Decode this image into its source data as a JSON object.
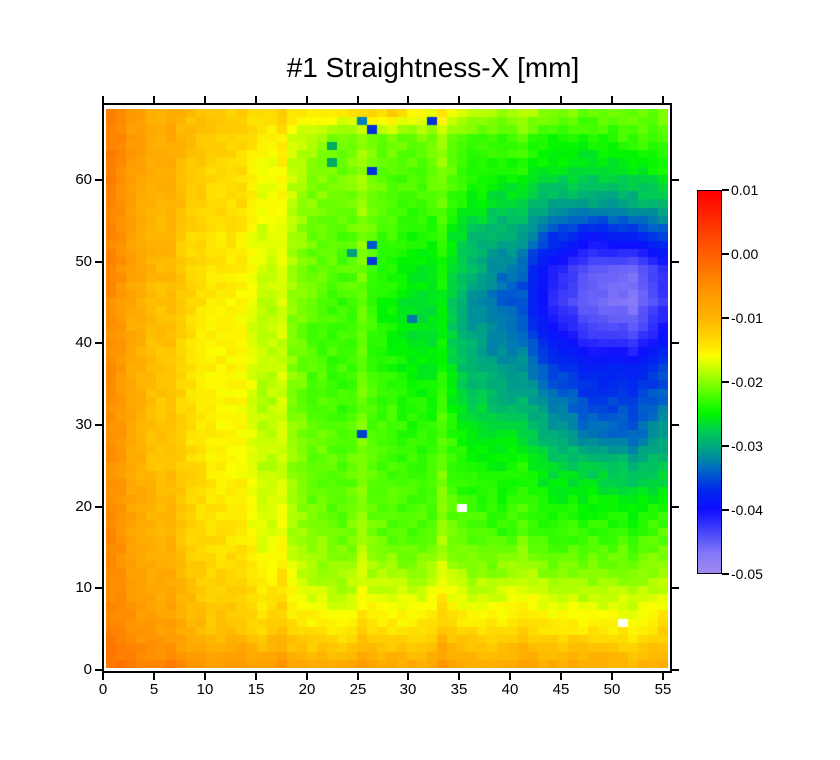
{
  "page": {
    "background": "#ffffff"
  },
  "chart_data": {
    "type": "heatmap",
    "title": "#1 Straightness-X [mm]",
    "x_axis": {
      "tick_labels": [
        "0",
        "5",
        "10",
        "15",
        "20",
        "25",
        "30",
        "35",
        "40",
        "45",
        "50",
        "55"
      ],
      "tick_values": [
        0,
        5,
        10,
        15,
        20,
        25,
        30,
        35,
        40,
        45,
        50,
        55
      ],
      "range": [
        0,
        56
      ]
    },
    "y_axis": {
      "tick_labels": [
        "0",
        "10",
        "20",
        "30",
        "40",
        "50",
        "60"
      ],
      "tick_values": [
        0,
        10,
        20,
        30,
        40,
        50,
        60
      ],
      "range": [
        0,
        68
      ]
    },
    "grid_cols": 56,
    "grid_rows": 68,
    "legend_position": "right",
    "colorbar": {
      "tick_labels": [
        "0.01",
        "0.00",
        "-0.01",
        "-0.02",
        "-0.03",
        "-0.04",
        "-0.05"
      ],
      "tick_values": [
        0.01,
        0.0,
        -0.01,
        -0.02,
        -0.03,
        -0.04,
        -0.05
      ],
      "max": 0.01,
      "min": -0.05,
      "stops": [
        {
          "v": 0.01,
          "color": "#ff0000"
        },
        {
          "v": 0.004,
          "color": "#ff3c00"
        },
        {
          "v": 0.0,
          "color": "#ff6000"
        },
        {
          "v": -0.006,
          "color": "#ff9800"
        },
        {
          "v": -0.01,
          "color": "#ffb400"
        },
        {
          "v": -0.0135,
          "color": "#ffdc00"
        },
        {
          "v": -0.016,
          "color": "#fbff00"
        },
        {
          "v": -0.019,
          "color": "#a4ff00"
        },
        {
          "v": -0.022,
          "color": "#50ff00"
        },
        {
          "v": -0.025,
          "color": "#00f600"
        },
        {
          "v": -0.028,
          "color": "#00c85a"
        },
        {
          "v": -0.031,
          "color": "#009c8c"
        },
        {
          "v": -0.034,
          "color": "#0064c8"
        },
        {
          "v": -0.037,
          "color": "#0028ee"
        },
        {
          "v": -0.04,
          "color": "#0e0eff"
        },
        {
          "v": -0.0435,
          "color": "#4444fa"
        },
        {
          "v": -0.047,
          "color": "#8478f8"
        },
        {
          "v": -0.05,
          "color": "#a28af0"
        }
      ]
    },
    "surface": {
      "xs": [
        0,
        4,
        8,
        12,
        16,
        20,
        24,
        28,
        32,
        36,
        40,
        44,
        48,
        52,
        55
      ],
      "ys": [
        67,
        64,
        60,
        56,
        52,
        48,
        44,
        40,
        36,
        32,
        28,
        24,
        20,
        16,
        12,
        8,
        4,
        0
      ],
      "values_mm": [
        [
          -0.003,
          -0.009,
          -0.011,
          -0.013,
          -0.014,
          -0.015,
          -0.015,
          -0.013,
          -0.017,
          -0.018,
          -0.019,
          -0.02,
          -0.021,
          -0.021,
          -0.021
        ],
        [
          -0.003,
          -0.009,
          -0.011,
          -0.013,
          -0.016,
          -0.019,
          -0.021,
          -0.021,
          -0.021,
          -0.022,
          -0.023,
          -0.024,
          -0.024,
          -0.023,
          -0.022
        ],
        [
          -0.003,
          -0.009,
          -0.012,
          -0.014,
          -0.017,
          -0.02,
          -0.021,
          -0.022,
          -0.022,
          -0.023,
          -0.025,
          -0.026,
          -0.027,
          -0.026,
          -0.025
        ],
        [
          -0.004,
          -0.01,
          -0.012,
          -0.014,
          -0.017,
          -0.02,
          -0.021,
          -0.022,
          -0.023,
          -0.025,
          -0.028,
          -0.03,
          -0.031,
          -0.03,
          -0.029
        ],
        [
          -0.004,
          -0.01,
          -0.013,
          -0.015,
          -0.018,
          -0.021,
          -0.022,
          -0.023,
          -0.025,
          -0.028,
          -0.031,
          -0.036,
          -0.039,
          -0.038,
          -0.036
        ],
        [
          -0.004,
          -0.01,
          -0.013,
          -0.015,
          -0.018,
          -0.021,
          -0.022,
          -0.024,
          -0.026,
          -0.029,
          -0.034,
          -0.041,
          -0.045,
          -0.046,
          -0.042
        ],
        [
          -0.005,
          -0.011,
          -0.013,
          -0.016,
          -0.019,
          -0.021,
          -0.023,
          -0.025,
          -0.027,
          -0.031,
          -0.035,
          -0.042,
          -0.046,
          -0.047,
          -0.043
        ],
        [
          -0.005,
          -0.011,
          -0.014,
          -0.016,
          -0.019,
          -0.022,
          -0.023,
          -0.025,
          -0.027,
          -0.03,
          -0.034,
          -0.039,
          -0.043,
          -0.044,
          -0.04
        ],
        [
          -0.005,
          -0.011,
          -0.014,
          -0.016,
          -0.019,
          -0.022,
          -0.023,
          -0.024,
          -0.026,
          -0.029,
          -0.032,
          -0.036,
          -0.038,
          -0.038,
          -0.036
        ],
        [
          -0.005,
          -0.011,
          -0.014,
          -0.016,
          -0.019,
          -0.022,
          -0.023,
          -0.023,
          -0.025,
          -0.027,
          -0.03,
          -0.033,
          -0.036,
          -0.036,
          -0.034
        ],
        [
          -0.005,
          -0.011,
          -0.014,
          -0.016,
          -0.019,
          -0.021,
          -0.022,
          -0.023,
          -0.024,
          -0.025,
          -0.027,
          -0.03,
          -0.033,
          -0.034,
          -0.031
        ],
        [
          -0.005,
          -0.011,
          -0.013,
          -0.016,
          -0.019,
          -0.021,
          -0.022,
          -0.023,
          -0.023,
          -0.024,
          -0.025,
          -0.027,
          -0.028,
          -0.029,
          -0.028
        ],
        [
          -0.005,
          -0.01,
          -0.013,
          -0.015,
          -0.018,
          -0.021,
          -0.022,
          -0.022,
          -0.023,
          -0.023,
          -0.024,
          -0.025,
          -0.025,
          -0.026,
          -0.025
        ],
        [
          -0.004,
          -0.01,
          -0.013,
          -0.015,
          -0.018,
          -0.02,
          -0.021,
          -0.022,
          -0.022,
          -0.022,
          -0.023,
          -0.023,
          -0.023,
          -0.023,
          -0.022
        ],
        [
          -0.004,
          -0.009,
          -0.012,
          -0.014,
          -0.016,
          -0.019,
          -0.02,
          -0.02,
          -0.02,
          -0.02,
          -0.02,
          -0.021,
          -0.021,
          -0.021,
          -0.02
        ],
        [
          -0.004,
          -0.008,
          -0.011,
          -0.013,
          -0.015,
          -0.017,
          -0.018,
          -0.017,
          -0.017,
          -0.017,
          -0.017,
          -0.017,
          -0.018,
          -0.018,
          -0.017
        ],
        [
          -0.003,
          -0.007,
          -0.01,
          -0.012,
          -0.013,
          -0.014,
          -0.015,
          -0.014,
          -0.014,
          -0.013,
          -0.014,
          -0.014,
          -0.014,
          -0.015,
          -0.013
        ],
        [
          -0.002,
          -0.004,
          -0.006,
          -0.007,
          -0.008,
          -0.009,
          -0.009,
          -0.009,
          -0.009,
          -0.009,
          -0.009,
          -0.009,
          -0.009,
          -0.01,
          -0.009
        ]
      ]
    },
    "light_column_stripes": [
      {
        "x": 6,
        "delta": 0.0012
      },
      {
        "x": 13,
        "delta": 0.0012
      },
      {
        "x": 17,
        "delta": 0.0018
      },
      {
        "x": 25,
        "delta": 0.0018
      },
      {
        "x": 33,
        "delta": 0.0022
      },
      {
        "x": 41,
        "delta": 0.0012
      }
    ],
    "noise_amplitude": 0.0009,
    "anomaly_cells": [
      {
        "x": 25,
        "y": 66,
        "color": "#0082b4"
      },
      {
        "x": 26,
        "y": 65,
        "color": "#0032d8"
      },
      {
        "x": 32,
        "y": 66,
        "color": "#0032d8"
      },
      {
        "x": 22,
        "y": 63,
        "color": "#00aa5f"
      },
      {
        "x": 22,
        "y": 61,
        "color": "#00aa5f"
      },
      {
        "x": 26,
        "y": 60,
        "color": "#0032d8"
      },
      {
        "x": 26,
        "y": 51,
        "color": "#0055cc"
      },
      {
        "x": 24,
        "y": 50,
        "color": "#00a080"
      },
      {
        "x": 26,
        "y": 49,
        "color": "#0038d8"
      },
      {
        "x": 30,
        "y": 42,
        "color": "#0078a8"
      },
      {
        "x": 25,
        "y": 28,
        "color": "#0040d0"
      },
      {
        "x": 35,
        "y": 19,
        "color": "#ffffff"
      },
      {
        "x": 51,
        "y": 5,
        "color": "#ffffff"
      }
    ]
  }
}
